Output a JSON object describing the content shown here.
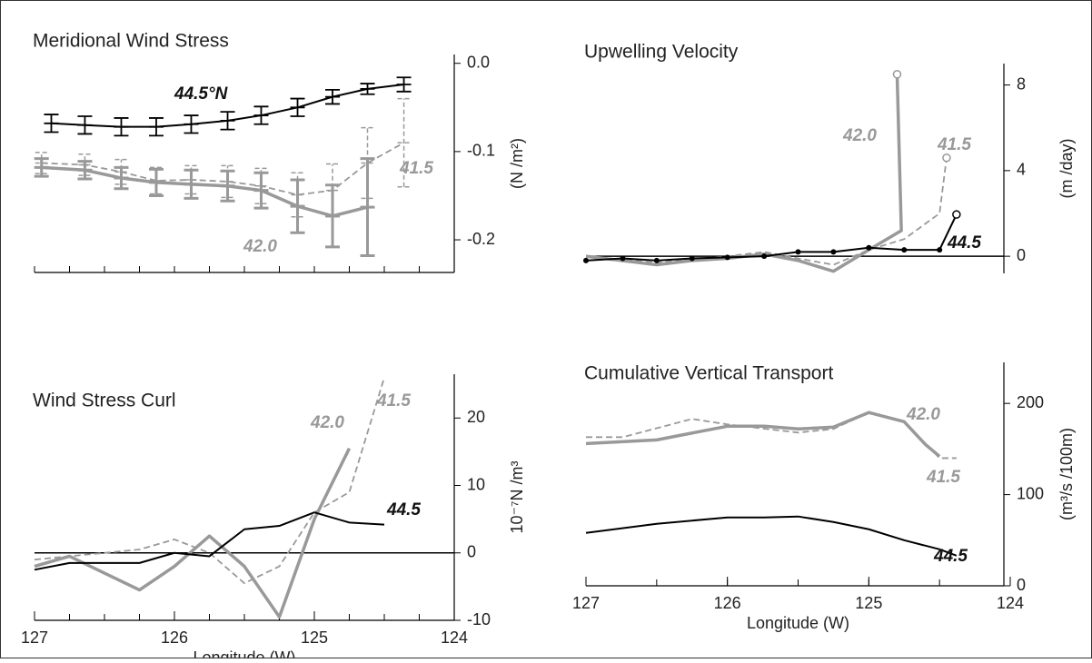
{
  "chart_data": [
    {
      "type": "line",
      "title": "Meridional Wind Stress",
      "ylabel": "(N /m²)",
      "xlim": [
        127,
        124
      ],
      "ylim": [
        -0.237,
        0.01
      ],
      "yticks": [
        {
          "value": 0,
          "label": "0.0"
        },
        -0.1,
        -0.2
      ],
      "xminorticks": [
        127,
        126.75,
        126.5,
        126.25,
        126,
        125.75,
        125.5,
        125.25,
        125,
        124.75,
        124.5,
        124.25,
        124
      ],
      "series": [
        {
          "name": "44.5°N",
          "color": "#000000",
          "dash": false,
          "x": [
            126.88,
            126.64,
            126.38,
            126.13,
            125.88,
            125.62,
            125.38,
            125.12,
            124.87,
            124.62,
            124.36
          ],
          "values": [
            -0.068,
            -0.07,
            -0.072,
            -0.072,
            -0.069,
            -0.065,
            -0.059,
            -0.05,
            -0.038,
            -0.029,
            -0.024
          ],
          "errors": [
            0.01,
            0.01,
            0.01,
            0.01,
            0.01,
            0.01,
            0.01,
            0.01,
            0.008,
            0.006,
            0.008
          ]
        },
        {
          "name": "42.0",
          "color": "#999999",
          "dash": false,
          "x": [
            126.95,
            126.64,
            126.38,
            126.13,
            125.88,
            125.62,
            125.38,
            125.12,
            124.87,
            124.62
          ],
          "values": [
            -0.118,
            -0.121,
            -0.13,
            -0.135,
            -0.137,
            -0.139,
            -0.144,
            -0.162,
            -0.173,
            -0.163
          ],
          "errors": [
            0.01,
            0.01,
            0.012,
            0.015,
            0.016,
            0.017,
            0.02,
            0.03,
            0.035,
            0.055
          ]
        },
        {
          "name": "41.5",
          "color": "#999999",
          "dash": true,
          "x": [
            126.95,
            126.64,
            126.38,
            126.13,
            125.88,
            125.62,
            125.38,
            125.12,
            124.87,
            124.62,
            124.36
          ],
          "values": [
            -0.113,
            -0.115,
            -0.123,
            -0.133,
            -0.132,
            -0.134,
            -0.139,
            -0.149,
            -0.144,
            -0.113,
            -0.09
          ],
          "errors": [
            0.012,
            0.012,
            0.014,
            0.015,
            0.016,
            0.018,
            0.02,
            0.025,
            0.03,
            0.04,
            0.05
          ]
        }
      ]
    },
    {
      "type": "line",
      "title": "Upwelling Velocity",
      "ylabel": "(m /day)",
      "xlim": [
        127,
        124
      ],
      "ylim": [
        -0.8,
        9
      ],
      "yticks": [
        0,
        4,
        8
      ],
      "reference_line": 0,
      "series": [
        {
          "name": "42.0",
          "color": "#999999",
          "dash": false,
          "marker": "none",
          "end_marker": "circle",
          "x": [
            127,
            126.5,
            126.25,
            126,
            125.74,
            125.5,
            125.25,
            125,
            124.77,
            124.8
          ],
          "values": [
            0,
            -0.4,
            -0.2,
            -0.1,
            0.1,
            -0.2,
            -0.7,
            0.3,
            1.2,
            8.5
          ]
        },
        {
          "name": "41.5",
          "color": "#999999",
          "dash": true,
          "marker": "none",
          "end_marker": "circle",
          "x": [
            127,
            126.5,
            126,
            125.74,
            125.5,
            125.25,
            125,
            124.75,
            124.5,
            124.45
          ],
          "values": [
            0,
            -0.3,
            0,
            0.2,
            -0.1,
            -0.4,
            0.3,
            0.8,
            2.0,
            4.6
          ]
        },
        {
          "name": "44.5",
          "color": "#000000",
          "dash": false,
          "marker": "dot",
          "end_marker": "circle",
          "x": [
            127,
            126.74,
            126.5,
            126.25,
            126,
            125.74,
            125.5,
            125.25,
            125,
            124.75,
            124.5,
            124.38
          ],
          "values": [
            -0.2,
            -0.1,
            -0.2,
            -0.1,
            -0.05,
            0,
            0.2,
            0.2,
            0.4,
            0.3,
            0.3,
            1.95
          ]
        }
      ]
    },
    {
      "type": "line",
      "title": "Wind Stress Curl",
      "ylabel": "10⁻⁷N /m³",
      "xlabel": "Longitude (W)",
      "xlim": [
        127,
        124
      ],
      "ylim": [
        -10,
        26.5
      ],
      "yticks": [
        20,
        10,
        0,
        -10
      ],
      "reference_line": 0,
      "xticks": [
        127,
        126,
        125,
        124
      ],
      "xminorticks": [
        127,
        126.75,
        126.5,
        126.25,
        126,
        125.75,
        125.5,
        125.25,
        125,
        124.75,
        124.5,
        124.25,
        124
      ],
      "series": [
        {
          "name": "42.0",
          "color": "#999999",
          "dash": false,
          "x": [
            127,
            126.75,
            126.5,
            126.25,
            126,
            125.75,
            125.5,
            125.25,
            125,
            124.75
          ],
          "values": [
            -2,
            -0.5,
            -3,
            -5.5,
            -2,
            2.5,
            -2,
            -9.5,
            5,
            15.5
          ]
        },
        {
          "name": "41.5",
          "color": "#999999",
          "dash": true,
          "x": [
            127,
            126.75,
            126.5,
            126.25,
            126,
            125.75,
            125.5,
            125.25,
            125,
            124.75,
            124.5
          ],
          "values": [
            -1,
            -0.5,
            0,
            0.5,
            2,
            0,
            -4.5,
            -2,
            6,
            9,
            26
          ]
        },
        {
          "name": "44.5",
          "color": "#000000",
          "dash": false,
          "x": [
            127,
            126.75,
            126.5,
            126.25,
            126,
            125.75,
            125.5,
            125.25,
            125,
            124.75,
            124.5
          ],
          "values": [
            -2.5,
            -1.5,
            -1.5,
            -1.5,
            0,
            -0.5,
            3.5,
            4,
            6,
            4.5,
            4.2
          ]
        }
      ]
    },
    {
      "type": "line",
      "title": "Cumulative Vertical Transport",
      "ylabel": "(m³/s /100m)",
      "xlabel": "Longitude (W)",
      "xlim": [
        127,
        124
      ],
      "ylim": [
        0,
        245
      ],
      "yticks": [
        200,
        100,
        0
      ],
      "xticks": [
        127,
        126,
        125,
        124
      ],
      "xminorticks": [
        127,
        126.5,
        126,
        125.5,
        125,
        124.5,
        124
      ],
      "series": [
        {
          "name": "42.0",
          "color": "#999999",
          "dash": false,
          "x": [
            127,
            126.5,
            126,
            125.74,
            125.5,
            125.25,
            125,
            124.75,
            124.6,
            124.5
          ],
          "values": [
            156,
            160,
            175,
            175,
            172,
            174,
            190,
            180,
            155,
            142
          ]
        },
        {
          "name": "41.5",
          "color": "#999999",
          "dash": true,
          "x": [
            127,
            126.74,
            126.25,
            126,
            125.5,
            125.25,
            125,
            124.75,
            124.5,
            124.38
          ],
          "values": [
            163,
            163,
            183,
            177,
            168,
            172,
            190,
            180,
            140,
            140
          ]
        },
        {
          "name": "44.5",
          "color": "#000000",
          "dash": false,
          "x": [
            127,
            126.5,
            126,
            125.74,
            125.5,
            125.25,
            125,
            124.75,
            124.5,
            124.38
          ],
          "values": [
            58,
            68,
            75,
            75,
            76,
            70,
            62,
            50,
            40,
            33
          ]
        }
      ]
    }
  ]
}
